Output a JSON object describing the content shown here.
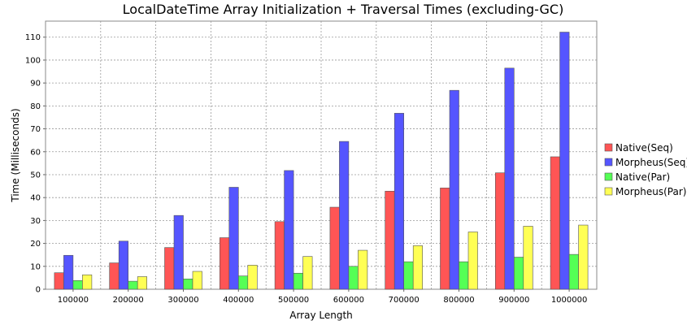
{
  "chart_data": {
    "type": "bar",
    "title": "LocalDateTime Array Initialization + Traversal Times (excluding-GC)",
    "xlabel": "Array Length",
    "ylabel": "Time (Milliseconds)",
    "ylim": [
      0,
      117
    ],
    "yticks": [
      0,
      10,
      20,
      30,
      40,
      50,
      60,
      70,
      80,
      90,
      100,
      110
    ],
    "grid": true,
    "legend_position": "right",
    "categories": [
      "100000",
      "200000",
      "300000",
      "400000",
      "500000",
      "600000",
      "700000",
      "800000",
      "900000",
      "1000000"
    ],
    "series": [
      {
        "name": "Native(Seq)",
        "color": "#ff5555",
        "values": [
          7.2,
          11.5,
          18.2,
          22.5,
          29.5,
          35.8,
          42.8,
          44.2,
          50.8,
          57.8
        ]
      },
      {
        "name": "Morpheus(Seq)",
        "color": "#5555ff",
        "values": [
          14.8,
          21.0,
          32.2,
          44.5,
          51.8,
          64.5,
          76.8,
          86.8,
          96.5,
          112.2
        ]
      },
      {
        "name": "Native(Par)",
        "color": "#55ff55",
        "values": [
          3.8,
          3.5,
          4.5,
          5.8,
          7.0,
          10.0,
          12.0,
          12.0,
          14.0,
          15.2
        ]
      },
      {
        "name": "Morpheus(Par)",
        "color": "#ffff55",
        "values": [
          6.3,
          5.5,
          7.8,
          10.5,
          14.3,
          17.0,
          19.0,
          25.0,
          27.5,
          28.0
        ]
      }
    ]
  }
}
